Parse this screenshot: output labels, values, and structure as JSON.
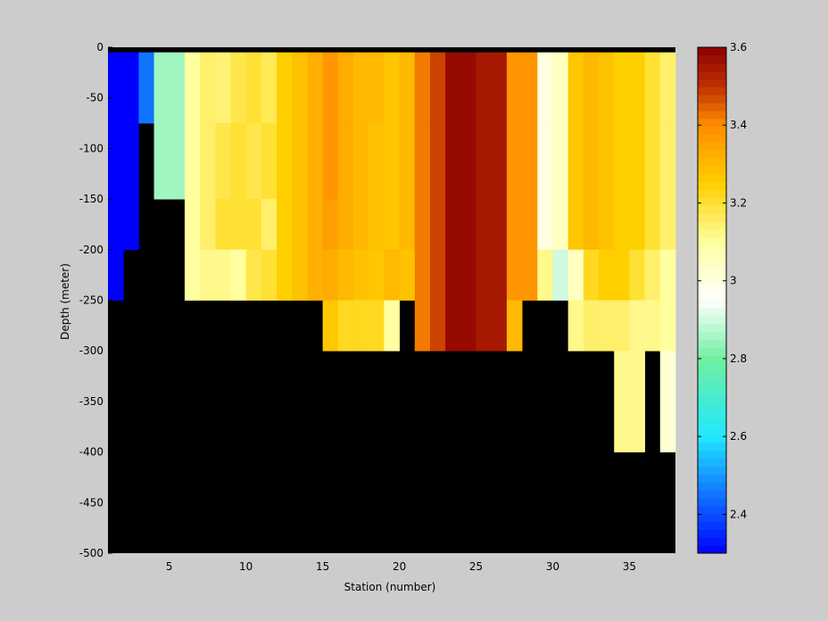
{
  "chart_data": [
    {
      "type": "heatmap",
      "xlabel": "Station (number)",
      "ylabel": "Depth (meter)",
      "xlim": [
        1,
        38
      ],
      "ylim": [
        -500,
        0
      ],
      "x_ticks": [
        5,
        10,
        15,
        20,
        25,
        30,
        35
      ],
      "y_ticks": [
        0,
        -50,
        -100,
        -150,
        -200,
        -250,
        -300,
        -350,
        -400,
        -450,
        -500
      ],
      "grid": false,
      "background_color": "#000000",
      "x_bin_edges": [
        1,
        2,
        3,
        4,
        5,
        6,
        7,
        8,
        9,
        10,
        11,
        12,
        13,
        14,
        15,
        16,
        17,
        18,
        19,
        20,
        21,
        22,
        23,
        24,
        25,
        26,
        27,
        28,
        29,
        30,
        31,
        32,
        33,
        34,
        35,
        36,
        37,
        38
      ],
      "depth_bin_edges": [
        0,
        -5,
        -75,
        -150,
        -200,
        -250,
        -300,
        -400
      ],
      "values_note_rows": "rows = depth bins from top; columns = stations 1..37; null = no data",
      "values": [
        [
          null,
          null,
          null,
          null,
          null,
          null,
          null,
          null,
          null,
          null,
          null,
          null,
          null,
          null,
          null,
          null,
          null,
          null,
          null,
          null,
          null,
          null,
          null,
          null,
          null,
          null,
          null,
          null,
          null,
          null,
          null,
          null,
          null,
          null,
          null,
          null,
          null
        ],
        [
          2.3,
          2.3,
          2.45,
          2.85,
          2.85,
          3.1,
          3.15,
          3.14,
          3.18,
          3.2,
          3.17,
          3.25,
          3.28,
          3.32,
          3.38,
          3.33,
          3.3,
          3.3,
          3.27,
          3.3,
          3.42,
          3.48,
          3.58,
          3.58,
          3.55,
          3.55,
          3.38,
          3.38,
          3.0,
          3.05,
          3.27,
          3.3,
          3.28,
          3.25,
          3.25,
          3.2,
          3.15
        ],
        [
          2.3,
          2.3,
          null,
          2.85,
          2.85,
          3.1,
          3.15,
          3.18,
          3.2,
          3.18,
          3.2,
          3.25,
          3.28,
          3.32,
          3.38,
          3.33,
          3.3,
          3.28,
          3.27,
          3.3,
          3.42,
          3.48,
          3.58,
          3.58,
          3.55,
          3.55,
          3.38,
          3.38,
          3.0,
          3.05,
          3.27,
          3.3,
          3.28,
          3.25,
          3.25,
          3.2,
          3.15
        ],
        [
          2.3,
          2.3,
          null,
          null,
          null,
          3.1,
          3.15,
          3.2,
          3.2,
          3.2,
          3.15,
          3.25,
          3.28,
          3.32,
          3.36,
          3.33,
          3.3,
          3.28,
          3.27,
          3.3,
          3.42,
          3.48,
          3.58,
          3.58,
          3.55,
          3.55,
          3.38,
          3.38,
          3.0,
          3.05,
          3.27,
          3.3,
          3.28,
          3.25,
          3.25,
          3.2,
          3.15
        ],
        [
          2.3,
          null,
          null,
          null,
          null,
          3.1,
          3.12,
          3.12,
          3.1,
          3.18,
          3.2,
          3.25,
          3.28,
          3.32,
          3.33,
          3.3,
          3.28,
          3.27,
          3.3,
          3.28,
          3.42,
          3.48,
          3.58,
          3.58,
          3.55,
          3.55,
          3.38,
          3.38,
          3.12,
          2.9,
          3.05,
          3.22,
          3.25,
          3.25,
          3.2,
          3.15,
          3.1
        ],
        [
          null,
          null,
          null,
          null,
          null,
          null,
          null,
          null,
          null,
          null,
          null,
          null,
          null,
          null,
          3.27,
          3.22,
          3.22,
          3.22,
          3.1,
          null,
          3.42,
          3.48,
          3.58,
          3.58,
          3.55,
          3.55,
          3.3,
          null,
          null,
          null,
          3.12,
          3.15,
          3.15,
          3.15,
          3.12,
          3.12,
          3.1
        ],
        [
          null,
          null,
          null,
          null,
          null,
          null,
          null,
          null,
          null,
          null,
          null,
          null,
          null,
          null,
          null,
          null,
          null,
          null,
          null,
          null,
          null,
          null,
          null,
          null,
          null,
          null,
          null,
          null,
          null,
          null,
          null,
          null,
          null,
          3.12,
          3.12,
          null,
          3.02
        ]
      ],
      "colorbar": {
        "min": 2.3,
        "max": 3.6,
        "ticks": [
          2.4,
          2.6,
          2.8,
          3,
          3.2,
          3.4,
          3.6
        ],
        "colormap": [
          [
            2.3,
            "#0000ff"
          ],
          [
            2.6,
            "#20e8ff"
          ],
          [
            2.8,
            "#70f0a0"
          ],
          [
            2.95,
            "#ffffff"
          ],
          [
            3.1,
            "#ffffa0"
          ],
          [
            3.25,
            "#ffd000"
          ],
          [
            3.4,
            "#ff8c00"
          ],
          [
            3.5,
            "#c03000"
          ],
          [
            3.6,
            "#8b0000"
          ]
        ]
      }
    }
  ]
}
